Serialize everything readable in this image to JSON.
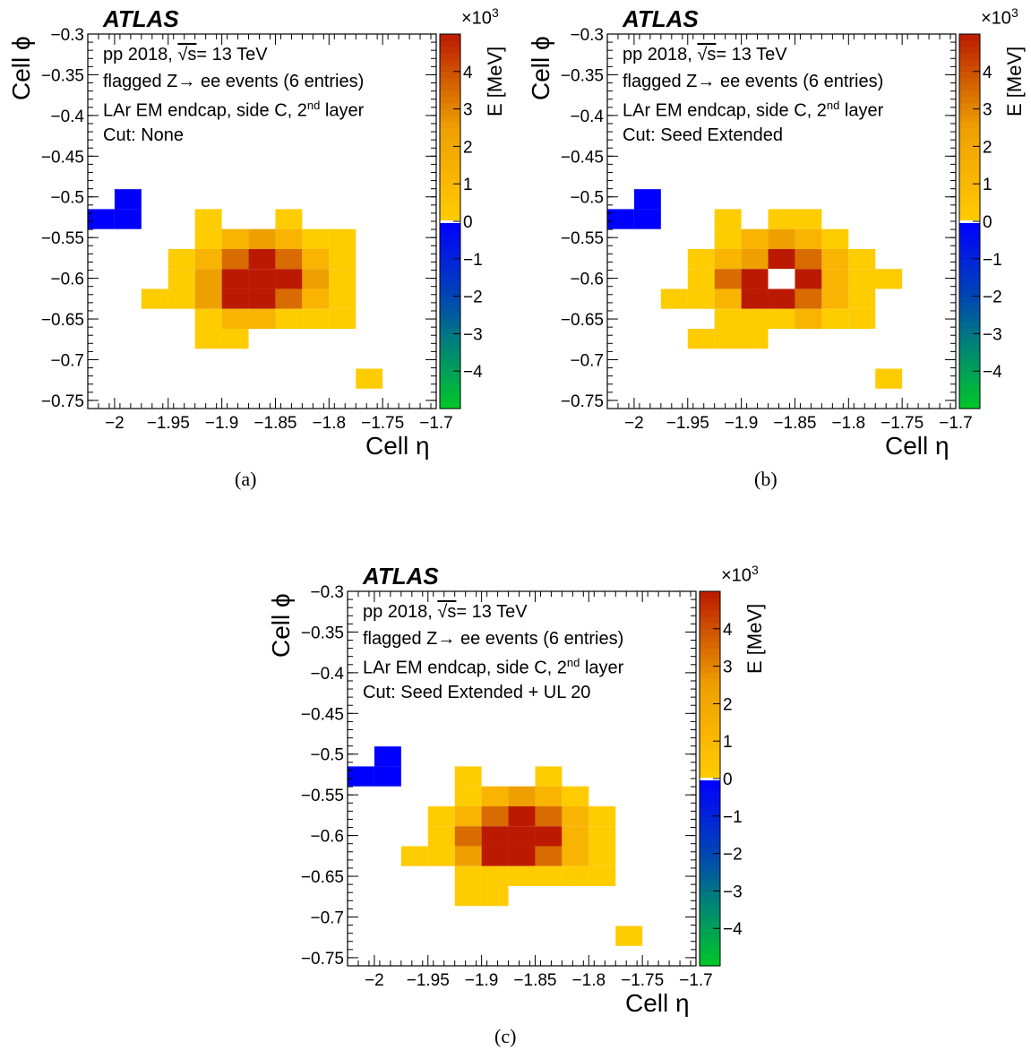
{
  "panels": [
    {
      "atlas": "ATLAS",
      "caption": "(a)",
      "info": {
        "line1_pre": "pp 2018, ",
        "line1_sqrt": "√s",
        "line1_post": "= 13 TeV",
        "line2": "flagged Z→ ee events (6 entries)",
        "line3_pre": "LAr EM endcap, side C, 2",
        "line3_sup": "nd",
        "line3_post": " layer",
        "line4": "Cut: None"
      }
    },
    {
      "atlas": "ATLAS",
      "caption": "(b)",
      "info": {
        "line1_pre": "pp 2018, ",
        "line1_sqrt": "√s",
        "line1_post": "= 13 TeV",
        "line2": "flagged Z→ ee events (6 entries)",
        "line3_pre": "LAr EM endcap, side C, 2",
        "line3_sup": "nd",
        "line3_post": " layer",
        "line4": "Cut: Seed Extended"
      }
    },
    {
      "atlas": "ATLAS",
      "caption": "(c)",
      "info": {
        "line1_pre": "pp 2018, ",
        "line1_sqrt": "√s",
        "line1_post": "= 13 TeV",
        "line2": "flagged Z→ ee events (6 entries)",
        "line3_pre": "LAr EM endcap, side C, 2",
        "line3_sup": "nd",
        "line3_post": " layer",
        "line4": "Cut: Seed Extended  + UL 20"
      }
    }
  ],
  "axis_text": {
    "xlabel": "Cell η",
    "ylabel": "Cell ϕ",
    "zlabel": "E [MeV]",
    "zmultiplier_base": "×10",
    "zmultiplier_exp": "3"
  },
  "colors": {
    "c0": "#ffcc00",
    "c1": "#f8b400",
    "c2": "#eea000",
    "c3": "#d86c00",
    "c4": "#bb1a00",
    "neg": "#0000ff",
    "overflow": "#ffffff"
  },
  "chart_data": [
    {
      "type": "heatmap",
      "title": "",
      "xlabel": "Cell η",
      "ylabel": "Cell ϕ",
      "zlabel": "E [MeV]",
      "xlim": [
        -2.025,
        -1.7
      ],
      "ylim": [
        -0.76,
        -0.3
      ],
      "zlim": [
        -5000,
        5000
      ],
      "bin_width": [
        0.025,
        0.0245
      ],
      "xticks": [
        -2.0,
        -1.95,
        -1.9,
        -1.85,
        -1.8,
        -1.75,
        -1.7
      ],
      "yticks": [
        -0.3,
        -0.35,
        -0.4,
        -0.45,
        -0.5,
        -0.55,
        -0.6,
        -0.65,
        -0.7,
        -0.75
      ],
      "zticks": [
        -4,
        -3,
        -2,
        -1,
        0,
        1,
        2,
        3,
        4
      ],
      "cells": [
        {
          "x": -1.9875,
          "y": -0.5028,
          "z": -500
        },
        {
          "x": -2.0125,
          "y": -0.5273,
          "z": -500
        },
        {
          "x": -1.9875,
          "y": -0.5273,
          "z": -500
        },
        {
          "x": -1.9125,
          "y": -0.5273,
          "z": 400
        },
        {
          "x": -1.8375,
          "y": -0.5273,
          "z": 400
        },
        {
          "x": -1.9125,
          "y": -0.5518,
          "z": 500
        },
        {
          "x": -1.8875,
          "y": -0.5518,
          "z": 900
        },
        {
          "x": -1.8625,
          "y": -0.5518,
          "z": 1300
        },
        {
          "x": -1.8375,
          "y": -0.5518,
          "z": 900
        },
        {
          "x": -1.8125,
          "y": -0.5518,
          "z": 500
        },
        {
          "x": -1.7875,
          "y": -0.5518,
          "z": 400
        },
        {
          "x": -1.9375,
          "y": -0.5763,
          "z": 400
        },
        {
          "x": -1.9125,
          "y": -0.5763,
          "z": 900
        },
        {
          "x": -1.8875,
          "y": -0.5763,
          "z": 2200
        },
        {
          "x": -1.8625,
          "y": -0.5763,
          "z": 4000
        },
        {
          "x": -1.8375,
          "y": -0.5763,
          "z": 2200
        },
        {
          "x": -1.8125,
          "y": -0.5763,
          "z": 900
        },
        {
          "x": -1.7875,
          "y": -0.5763,
          "z": 400
        },
        {
          "x": -1.9375,
          "y": -0.6008,
          "z": 400
        },
        {
          "x": -1.9125,
          "y": -0.6008,
          "z": 1300
        },
        {
          "x": -1.8875,
          "y": -0.6008,
          "z": 4500
        },
        {
          "x": -1.8625,
          "y": -0.6008,
          "z": 4500
        },
        {
          "x": -1.8375,
          "y": -0.6008,
          "z": 4000
        },
        {
          "x": -1.8125,
          "y": -0.6008,
          "z": 1300
        },
        {
          "x": -1.7875,
          "y": -0.6008,
          "z": 500
        },
        {
          "x": -1.9625,
          "y": -0.6253,
          "z": 400
        },
        {
          "x": -1.9375,
          "y": -0.6253,
          "z": 400
        },
        {
          "x": -1.9125,
          "y": -0.6253,
          "z": 1300
        },
        {
          "x": -1.8875,
          "y": -0.6253,
          "z": 4500
        },
        {
          "x": -1.8625,
          "y": -0.6253,
          "z": 4500
        },
        {
          "x": -1.8375,
          "y": -0.6253,
          "z": 2200
        },
        {
          "x": -1.8125,
          "y": -0.6253,
          "z": 900
        },
        {
          "x": -1.7875,
          "y": -0.6253,
          "z": 400
        },
        {
          "x": -1.9125,
          "y": -0.6498,
          "z": 500
        },
        {
          "x": -1.8875,
          "y": -0.6498,
          "z": 900
        },
        {
          "x": -1.8625,
          "y": -0.6498,
          "z": 900
        },
        {
          "x": -1.8375,
          "y": -0.6498,
          "z": 500
        },
        {
          "x": -1.8125,
          "y": -0.6498,
          "z": 400
        },
        {
          "x": -1.7875,
          "y": -0.6498,
          "z": 400
        },
        {
          "x": -1.9125,
          "y": -0.6743,
          "z": 400
        },
        {
          "x": -1.8875,
          "y": -0.6743,
          "z": 400
        },
        {
          "x": -1.7625,
          "y": -0.7233,
          "z": 500
        }
      ]
    },
    {
      "type": "heatmap",
      "title": "",
      "xlabel": "Cell η",
      "ylabel": "Cell ϕ",
      "zlabel": "E [MeV]",
      "xlim": [
        -2.025,
        -1.7
      ],
      "ylim": [
        -0.76,
        -0.3
      ],
      "zlim": [
        -5000,
        5000
      ],
      "bin_width": [
        0.025,
        0.0245
      ],
      "xticks": [
        -2.0,
        -1.95,
        -1.9,
        -1.85,
        -1.8,
        -1.75,
        -1.7
      ],
      "yticks": [
        -0.3,
        -0.35,
        -0.4,
        -0.45,
        -0.5,
        -0.55,
        -0.6,
        -0.65,
        -0.7,
        -0.75
      ],
      "zticks": [
        -4,
        -3,
        -2,
        -1,
        0,
        1,
        2,
        3,
        4
      ],
      "cells": [
        {
          "x": -1.9875,
          "y": -0.5028,
          "z": -500
        },
        {
          "x": -2.0125,
          "y": -0.5273,
          "z": -500
        },
        {
          "x": -1.9875,
          "y": -0.5273,
          "z": -500
        },
        {
          "x": -1.9125,
          "y": -0.5273,
          "z": 400
        },
        {
          "x": -1.8625,
          "y": -0.5273,
          "z": 400
        },
        {
          "x": -1.8375,
          "y": -0.5273,
          "z": 400
        },
        {
          "x": -1.9125,
          "y": -0.5518,
          "z": 500
        },
        {
          "x": -1.8875,
          "y": -0.5518,
          "z": 900
        },
        {
          "x": -1.8625,
          "y": -0.5518,
          "z": 1300
        },
        {
          "x": -1.8375,
          "y": -0.5518,
          "z": 900
        },
        {
          "x": -1.8125,
          "y": -0.5518,
          "z": 400
        },
        {
          "x": -1.9375,
          "y": -0.5763,
          "z": 400
        },
        {
          "x": -1.9125,
          "y": -0.5763,
          "z": 900
        },
        {
          "x": -1.8875,
          "y": -0.5763,
          "z": 1300
        },
        {
          "x": -1.8625,
          "y": -0.5763,
          "z": 4500
        },
        {
          "x": -1.8375,
          "y": -0.5763,
          "z": 2200
        },
        {
          "x": -1.8125,
          "y": -0.5763,
          "z": 900
        },
        {
          "x": -1.7875,
          "y": -0.5763,
          "z": 400
        },
        {
          "x": -1.9375,
          "y": -0.6008,
          "z": 400
        },
        {
          "x": -1.9125,
          "y": -0.6008,
          "z": 2200
        },
        {
          "x": -1.8875,
          "y": -0.6008,
          "z": 4000
        },
        {
          "x": -1.8625,
          "y": -0.6008,
          "z": 6000
        },
        {
          "x": -1.8375,
          "y": -0.6008,
          "z": 4500
        },
        {
          "x": -1.8125,
          "y": -0.6008,
          "z": 900
        },
        {
          "x": -1.7875,
          "y": -0.6008,
          "z": 500
        },
        {
          "x": -1.7625,
          "y": -0.6008,
          "z": 400
        },
        {
          "x": -1.9625,
          "y": -0.6253,
          "z": 400
        },
        {
          "x": -1.9375,
          "y": -0.6253,
          "z": 400
        },
        {
          "x": -1.9125,
          "y": -0.6253,
          "z": 900
        },
        {
          "x": -1.8875,
          "y": -0.6253,
          "z": 4500
        },
        {
          "x": -1.8625,
          "y": -0.6253,
          "z": 4500
        },
        {
          "x": -1.8375,
          "y": -0.6253,
          "z": 2200
        },
        {
          "x": -1.8125,
          "y": -0.6253,
          "z": 900
        },
        {
          "x": -1.7875,
          "y": -0.6253,
          "z": 400
        },
        {
          "x": -1.9125,
          "y": -0.6498,
          "z": 400
        },
        {
          "x": -1.8875,
          "y": -0.6498,
          "z": 500
        },
        {
          "x": -1.8625,
          "y": -0.6498,
          "z": 500
        },
        {
          "x": -1.8375,
          "y": -0.6498,
          "z": 900
        },
        {
          "x": -1.8125,
          "y": -0.6498,
          "z": 500
        },
        {
          "x": -1.7875,
          "y": -0.6498,
          "z": 400
        },
        {
          "x": -1.9375,
          "y": -0.6743,
          "z": 400
        },
        {
          "x": -1.9125,
          "y": -0.6743,
          "z": 400
        },
        {
          "x": -1.8875,
          "y": -0.6743,
          "z": 400
        },
        {
          "x": -1.7625,
          "y": -0.7233,
          "z": 500
        }
      ]
    },
    {
      "type": "heatmap",
      "title": "",
      "xlabel": "Cell η",
      "ylabel": "Cell ϕ",
      "zlabel": "E [MeV]",
      "xlim": [
        -2.025,
        -1.7
      ],
      "ylim": [
        -0.76,
        -0.3
      ],
      "zlim": [
        -5000,
        5000
      ],
      "bin_width": [
        0.025,
        0.0245
      ],
      "xticks": [
        -2.0,
        -1.95,
        -1.9,
        -1.85,
        -1.8,
        -1.75,
        -1.7
      ],
      "yticks": [
        -0.3,
        -0.35,
        -0.4,
        -0.45,
        -0.5,
        -0.55,
        -0.6,
        -0.65,
        -0.7,
        -0.75
      ],
      "zticks": [
        -4,
        -3,
        -2,
        -1,
        0,
        1,
        2,
        3,
        4
      ],
      "cells": [
        {
          "x": -1.9875,
          "y": -0.5028,
          "z": -500
        },
        {
          "x": -2.0125,
          "y": -0.5273,
          "z": -500
        },
        {
          "x": -1.9875,
          "y": -0.5273,
          "z": -500
        },
        {
          "x": -1.9125,
          "y": -0.5273,
          "z": 400
        },
        {
          "x": -1.8375,
          "y": -0.5273,
          "z": 400
        },
        {
          "x": -1.9125,
          "y": -0.5518,
          "z": 500
        },
        {
          "x": -1.8875,
          "y": -0.5518,
          "z": 900
        },
        {
          "x": -1.8625,
          "y": -0.5518,
          "z": 1300
        },
        {
          "x": -1.8375,
          "y": -0.5518,
          "z": 900
        },
        {
          "x": -1.8125,
          "y": -0.5518,
          "z": 500
        },
        {
          "x": -1.9375,
          "y": -0.5763,
          "z": 400
        },
        {
          "x": -1.9125,
          "y": -0.5763,
          "z": 900
        },
        {
          "x": -1.8875,
          "y": -0.5763,
          "z": 2200
        },
        {
          "x": -1.8625,
          "y": -0.5763,
          "z": 4000
        },
        {
          "x": -1.8375,
          "y": -0.5763,
          "z": 2200
        },
        {
          "x": -1.8125,
          "y": -0.5763,
          "z": 900
        },
        {
          "x": -1.7875,
          "y": -0.5763,
          "z": 400
        },
        {
          "x": -1.9375,
          "y": -0.6008,
          "z": 400
        },
        {
          "x": -1.9125,
          "y": -0.6008,
          "z": 2200
        },
        {
          "x": -1.8875,
          "y": -0.6008,
          "z": 4500
        },
        {
          "x": -1.8625,
          "y": -0.6008,
          "z": 4500
        },
        {
          "x": -1.8375,
          "y": -0.6008,
          "z": 4500
        },
        {
          "x": -1.8125,
          "y": -0.6008,
          "z": 900
        },
        {
          "x": -1.7875,
          "y": -0.6008,
          "z": 400
        },
        {
          "x": -1.9625,
          "y": -0.6253,
          "z": 400
        },
        {
          "x": -1.9375,
          "y": -0.6253,
          "z": 400
        },
        {
          "x": -1.9125,
          "y": -0.6253,
          "z": 1300
        },
        {
          "x": -1.8875,
          "y": -0.6253,
          "z": 4500
        },
        {
          "x": -1.8625,
          "y": -0.6253,
          "z": 4500
        },
        {
          "x": -1.8375,
          "y": -0.6253,
          "z": 2200
        },
        {
          "x": -1.8125,
          "y": -0.6253,
          "z": 900
        },
        {
          "x": -1.7875,
          "y": -0.6253,
          "z": 400
        },
        {
          "x": -1.9125,
          "y": -0.6498,
          "z": 400
        },
        {
          "x": -1.8875,
          "y": -0.6498,
          "z": 400
        },
        {
          "x": -1.8625,
          "y": -0.6498,
          "z": 400
        },
        {
          "x": -1.8375,
          "y": -0.6498,
          "z": 400
        },
        {
          "x": -1.8125,
          "y": -0.6498,
          "z": 400
        },
        {
          "x": -1.7875,
          "y": -0.6498,
          "z": 400
        },
        {
          "x": -1.9125,
          "y": -0.6743,
          "z": 400
        },
        {
          "x": -1.8875,
          "y": -0.6743,
          "z": 400
        },
        {
          "x": -1.7625,
          "y": -0.7233,
          "z": 500
        }
      ]
    }
  ]
}
